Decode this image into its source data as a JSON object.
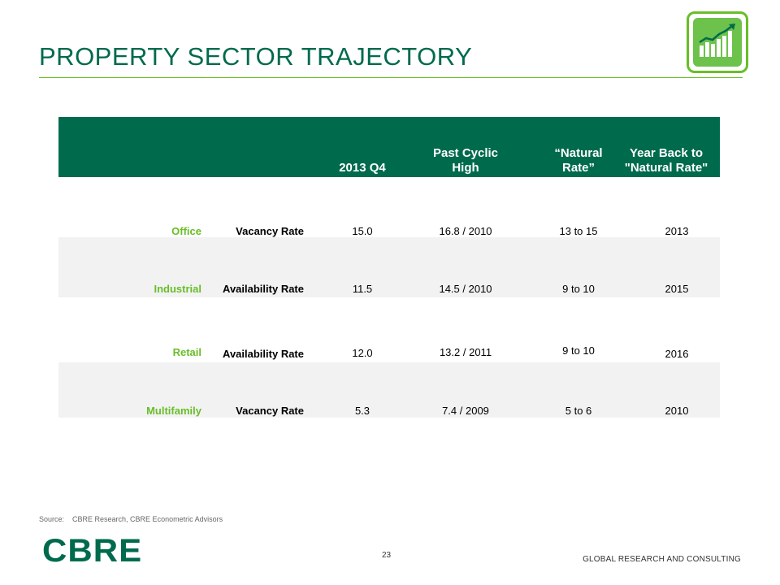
{
  "slide": {
    "title": "PROPERTY SECTOR TRAJECTORY",
    "page_number": "23",
    "footer_text": "GLOBAL RESEARCH AND CONSULTING",
    "logo_text": "CBRE",
    "badge_icon": "rising-bar-chart-icon",
    "colors": {
      "brand_green": "#006a4d",
      "accent_green": "#69be28"
    }
  },
  "table": {
    "headers": {
      "q4": "2013 Q4",
      "high": "Past Cyclic High",
      "natural": "“Natural Rate”",
      "year_back": "Year Back to \"Natural Rate\""
    },
    "rows": [
      {
        "sector": "Office",
        "metric": "Vacancy Rate",
        "q4": "15.0",
        "high": "16.8 / 2010",
        "natural": "13 to 15",
        "year": "2013"
      },
      {
        "sector": "Industrial",
        "metric": "Availability  Rate",
        "q4": "11.5",
        "high": "14.5 / 2010",
        "natural": "9 to 10",
        "year": "2015"
      },
      {
        "sector": "Retail",
        "metric": "Availability  Rate",
        "q4": "12.0",
        "high": "13.2 / 2011",
        "natural": "9 to 10",
        "year": "2016"
      },
      {
        "sector": "Multifamily",
        "metric": "Vacancy Rate",
        "q4": "5.3",
        "high": "7.4 / 2009",
        "natural": "5 to 6",
        "year": "2010"
      }
    ]
  },
  "source": {
    "label": "Source:",
    "text": "CBRE Research, CBRE Econometric Advisors"
  }
}
